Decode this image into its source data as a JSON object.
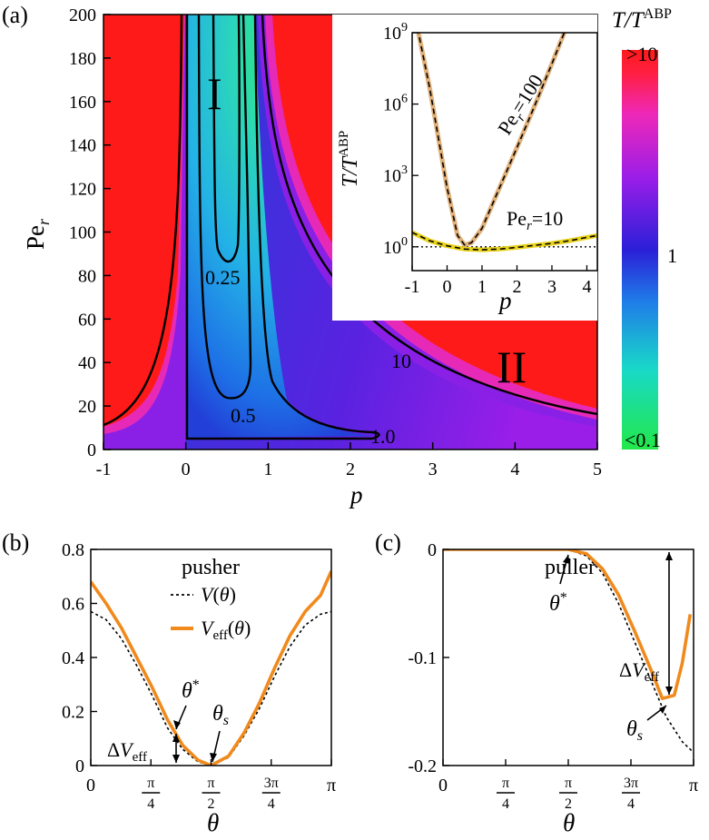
{
  "chart_data": [
    {
      "panel": "(a)",
      "type": "heatmap",
      "xlabel": "p",
      "ylabel": "Pe_r",
      "xlim": [
        -1,
        5
      ],
      "ylim": [
        0,
        200
      ],
      "xticks": [
        "-1",
        "0",
        "1",
        "2",
        "3",
        "4",
        "5"
      ],
      "yticks": [
        "0",
        "20",
        "40",
        "60",
        "80",
        "100",
        "120",
        "140",
        "160",
        "180",
        "200"
      ],
      "colorbar": {
        "label": "T/T^ABP",
        "top": ">10",
        "middle": "1",
        "bottom": "<0.1",
        "scale": "log"
      },
      "contour_labels": [
        "0.25",
        "0.5",
        "1.0",
        "10"
      ],
      "regions": [
        "I",
        "II"
      ]
    },
    {
      "panel": "inset",
      "type": "line",
      "xlabel": "p",
      "ylabel": "T/T^ABP",
      "xlim": [
        -1,
        4.3
      ],
      "yscale": "log",
      "ylim": [
        0.1,
        1000000000
      ],
      "xticks": [
        "-1",
        "0",
        "1",
        "2",
        "3",
        "4"
      ],
      "yticks": [
        "10^0",
        "10^3",
        "10^6",
        "10^9"
      ],
      "series": [
        {
          "name": "Pe_r=100",
          "x": [
            -1,
            -0.5,
            0,
            0.3,
            0.5,
            0.7,
            1,
            1.5,
            2,
            2.5,
            3,
            3.4
          ],
          "y": [
            20000000000.0,
            5000000.0,
            300,
            3,
            1.2,
            1.5,
            6,
            300,
            15000.0,
            800000.0,
            50000000.0,
            1500000000.0
          ]
        },
        {
          "name": "Pe_r=10",
          "x": [
            -1,
            -0.5,
            0,
            0.5,
            1,
            1.5,
            2,
            2.5,
            3,
            3.5,
            4,
            4.3
          ],
          "y": [
            4,
            1.8,
            1.1,
            0.8,
            0.75,
            0.8,
            0.95,
            1.15,
            1.4,
            1.8,
            2.5,
            3
          ]
        }
      ],
      "reference_line": 1
    },
    {
      "panel": "(b)",
      "title": "pusher",
      "type": "line",
      "xlabel": "θ",
      "xlim": [
        0,
        3.1416
      ],
      "ylim": [
        0,
        0.8
      ],
      "xticks": [
        "0",
        "π/4",
        "π/2",
        "3π/4",
        "π"
      ],
      "yticks": [
        "0",
        "0.2",
        "0.4",
        "0.6",
        "0.8"
      ],
      "series": [
        {
          "name": "V(θ)",
          "x": [
            0,
            0.2,
            0.4,
            0.6,
            0.8,
            1.0,
            1.2,
            1.4,
            1.571,
            1.8,
            2.0,
            2.2,
            2.4,
            2.6,
            2.8,
            3.0,
            3.1416
          ],
          "y": [
            0.57,
            0.54,
            0.47,
            0.37,
            0.26,
            0.14,
            0.06,
            0.014,
            0,
            0.03,
            0.11,
            0.21,
            0.33,
            0.44,
            0.52,
            0.56,
            0.57
          ]
        },
        {
          "name": "V_eff(θ)",
          "x": [
            0,
            0.2,
            0.4,
            0.6,
            0.8,
            1.0,
            1.2,
            1.4,
            1.571,
            1.8,
            2.0,
            2.2,
            2.4,
            2.6,
            2.8,
            3.0,
            3.1416
          ],
          "y": [
            0.68,
            0.6,
            0.51,
            0.4,
            0.29,
            0.17,
            0.075,
            0.02,
            0,
            0.035,
            0.12,
            0.23,
            0.36,
            0.48,
            0.57,
            0.63,
            0.72
          ]
        }
      ],
      "annotations": [
        "θ*",
        "θ_s",
        "ΔV_eff"
      ]
    },
    {
      "panel": "(c)",
      "title": "puller",
      "type": "line",
      "xlabel": "θ",
      "xlim": [
        0,
        3.1416
      ],
      "ylim": [
        -0.2,
        0
      ],
      "xticks": [
        "0",
        "π/4",
        "π/2",
        "3π/4",
        "π"
      ],
      "yticks": [
        "0",
        "-0.1",
        "-0.2"
      ],
      "series": [
        {
          "name": "V(θ)",
          "x": [
            0,
            1.0,
            1.571,
            1.8,
            2.0,
            2.2,
            2.4,
            2.6,
            2.8,
            3.0,
            3.1416
          ],
          "y": [
            0,
            0,
            0,
            -0.006,
            -0.022,
            -0.05,
            -0.085,
            -0.12,
            -0.155,
            -0.178,
            -0.188
          ]
        },
        {
          "name": "V_eff(θ)",
          "x": [
            0,
            1.0,
            1.571,
            1.8,
            2.0,
            2.2,
            2.4,
            2.6,
            2.75,
            2.9,
            3.0,
            3.1
          ],
          "y": [
            0,
            0,
            0,
            -0.004,
            -0.018,
            -0.042,
            -0.075,
            -0.11,
            -0.138,
            -0.135,
            -0.105,
            -0.06
          ]
        }
      ],
      "annotations": [
        "θ*",
        "θ_s",
        "ΔV_eff"
      ]
    }
  ]
}
